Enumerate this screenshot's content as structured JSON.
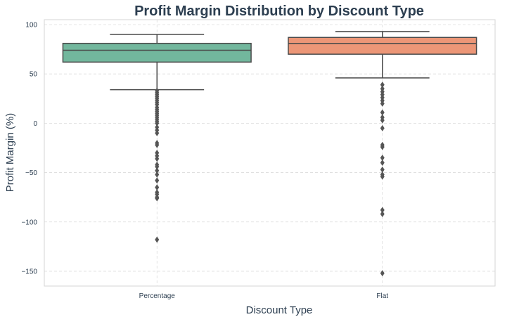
{
  "chart_data": {
    "type": "box",
    "title": "Profit Margin Distribution by Discount Type",
    "xlabel": "Discount Type",
    "ylabel": "Profit Margin (%)",
    "ylim": [
      -165,
      105
    ],
    "yticks": [
      100,
      50,
      0,
      -50,
      -100,
      -150
    ],
    "grid": true,
    "categories": [
      "Percentage",
      "Flat"
    ],
    "series": [
      {
        "category": "Percentage",
        "color": "#72b79d",
        "whisker_low": 34,
        "q1": 62,
        "median": 74,
        "q3": 81,
        "whisker_high": 90,
        "outliers": [
          33,
          31,
          29,
          27,
          25,
          23,
          21,
          19,
          16,
          14,
          12,
          10,
          8,
          6,
          4,
          2,
          0,
          -4,
          -7,
          -10,
          -20,
          -22,
          -30,
          -33,
          -36,
          -42,
          -44,
          -48,
          -52,
          -58,
          -65,
          -70,
          -72,
          -75,
          -76,
          -118
        ]
      },
      {
        "category": "Flat",
        "color": "#ec9677",
        "whisker_low": 46,
        "q1": 70,
        "median": 81,
        "q3": 87,
        "whisker_high": 93,
        "outliers": [
          39,
          35,
          32,
          29,
          26,
          23,
          20,
          11,
          6,
          3,
          -5,
          -22,
          -24,
          -35,
          -40,
          -47,
          -52,
          -54,
          -88,
          -92,
          -152
        ]
      }
    ]
  }
}
